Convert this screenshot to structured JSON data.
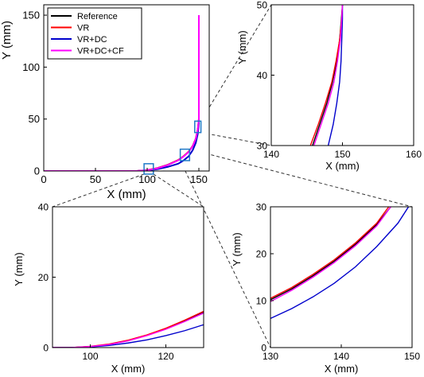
{
  "legend": {
    "entries": [
      {
        "label": "Reference",
        "color": "#000000"
      },
      {
        "label": "VR",
        "color": "#ff0000"
      },
      {
        "label": "VR+DC",
        "color": "#0000cc"
      },
      {
        "label": "VR+DC+CF",
        "color": "#ff00ff"
      }
    ]
  },
  "colors": {
    "box": "#1f78c8",
    "connector": "#333333"
  },
  "chart_data": [
    {
      "id": "main",
      "type": "line",
      "xlabel": "X (mm)",
      "ylabel": "Y (mm)",
      "xlim": [
        0,
        160
      ],
      "ylim": [
        0,
        160
      ],
      "xticks": [
        0,
        50,
        100,
        150
      ],
      "yticks": [
        0,
        50,
        100,
        150
      ],
      "series": [
        {
          "name": "Reference",
          "color": "#000000",
          "points": [
            [
              0,
              0
            ],
            [
              90,
              0
            ],
            [
              100,
              0.8
            ],
            [
              110,
              2.8
            ],
            [
              120,
              6
            ],
            [
              130,
              10.5
            ],
            [
              135,
              14
            ],
            [
              140,
              18.5
            ],
            [
              144,
              24
            ],
            [
              147,
              31
            ],
            [
              149,
              40
            ],
            [
              150,
              50
            ],
            [
              150,
              100
            ],
            [
              150,
              150
            ]
          ]
        },
        {
          "name": "VR",
          "color": "#ff0000",
          "points": [
            [
              0,
              0
            ],
            [
              90,
              0
            ],
            [
              100,
              0.8
            ],
            [
              110,
              2.8
            ],
            [
              120,
              6
            ],
            [
              130,
              10.5
            ],
            [
              135,
              14
            ],
            [
              140,
              18.5
            ],
            [
              144,
              24
            ],
            [
              147,
              31
            ],
            [
              149,
              40
            ],
            [
              150,
              50
            ],
            [
              150,
              100
            ],
            [
              150,
              150
            ]
          ]
        },
        {
          "name": "VR+DC",
          "color": "#0000cc",
          "points": [
            [
              0,
              0
            ],
            [
              90,
              0
            ],
            [
              100,
              0.5
            ],
            [
              110,
              1.8
            ],
            [
              120,
              4
            ],
            [
              130,
              7
            ],
            [
              135,
              10
            ],
            [
              140,
              14
            ],
            [
              144,
              20
            ],
            [
              147,
              27
            ],
            [
              149,
              36
            ],
            [
              150,
              46
            ],
            [
              150,
              100
            ],
            [
              150,
              150
            ]
          ]
        },
        {
          "name": "VR+DC+CF",
          "color": "#ff00ff",
          "points": [
            [
              0,
              0
            ],
            [
              90,
              0
            ],
            [
              100,
              0.7
            ],
            [
              110,
              2.6
            ],
            [
              120,
              5.8
            ],
            [
              130,
              10.2
            ],
            [
              135,
              13.8
            ],
            [
              140,
              18.2
            ],
            [
              144,
              23.8
            ],
            [
              147,
              31
            ],
            [
              149,
              40
            ],
            [
              150,
              50
            ],
            [
              150,
              100
            ],
            [
              150,
              150
            ]
          ]
        }
      ],
      "zoom_boxes": [
        {
          "xlim": [
            146,
            152
          ],
          "ylim": [
            37,
            48
          ]
        },
        {
          "xlim": [
            97,
            106
          ],
          "ylim": [
            -3,
            7
          ]
        },
        {
          "xlim": [
            132,
            141
          ],
          "ylim": [
            10,
            21
          ]
        }
      ]
    },
    {
      "id": "zoom-top-right",
      "type": "line",
      "xlabel": "X (mm)",
      "ylabel": "Y (mm)",
      "xlim": [
        140,
        160
      ],
      "ylim": [
        30,
        50
      ],
      "xticks": [
        140,
        150,
        160
      ],
      "yticks": [
        30,
        40,
        50
      ],
      "series": [
        {
          "name": "Reference",
          "color": "#000000",
          "points": [
            [
              145.8,
              30
            ],
            [
              146.8,
              33
            ],
            [
              147.8,
              36
            ],
            [
              148.6,
              39
            ],
            [
              149.2,
              42
            ],
            [
              149.6,
              45
            ],
            [
              149.85,
              48
            ],
            [
              150,
              50
            ]
          ]
        },
        {
          "name": "VR",
          "color": "#ff0000",
          "points": [
            [
              145.5,
              30
            ],
            [
              146.6,
              33
            ],
            [
              147.6,
              36
            ],
            [
              148.5,
              39
            ],
            [
              149.1,
              42
            ],
            [
              149.6,
              45
            ],
            [
              149.9,
              48
            ],
            [
              150,
              50
            ]
          ]
        },
        {
          "name": "VR+DC",
          "color": "#0000cc",
          "points": [
            [
              148,
              30
            ],
            [
              148.7,
              33
            ],
            [
              149.2,
              36
            ],
            [
              149.6,
              39
            ],
            [
              149.8,
              42
            ],
            [
              149.9,
              45
            ],
            [
              150,
              48
            ],
            [
              150,
              50
            ]
          ]
        },
        {
          "name": "VR+DC+CF",
          "color": "#ff00ff",
          "points": [
            [
              146,
              30
            ],
            [
              147,
              33
            ],
            [
              148,
              36
            ],
            [
              148.8,
              39
            ],
            [
              149.3,
              42
            ],
            [
              149.7,
              45
            ],
            [
              149.9,
              48
            ],
            [
              150,
              50
            ]
          ]
        }
      ]
    },
    {
      "id": "zoom-bottom-left",
      "type": "line",
      "xlabel": "X (mm)",
      "ylabel": "Y (mm)",
      "xlim": [
        90,
        130
      ],
      "ylim": [
        0,
        40
      ],
      "xticks": [
        100,
        120
      ],
      "yticks": [
        0,
        20,
        40
      ],
      "series": [
        {
          "name": "Reference",
          "color": "#000000",
          "points": [
            [
              90,
              0
            ],
            [
              95,
              0
            ],
            [
              100,
              0.3
            ],
            [
              105,
              0.9
            ],
            [
              110,
              2
            ],
            [
              115,
              3.5
            ],
            [
              120,
              5.3
            ],
            [
              125,
              7.6
            ],
            [
              130,
              10
            ]
          ]
        },
        {
          "name": "VR",
          "color": "#ff0000",
          "points": [
            [
              90,
              0
            ],
            [
              95,
              0
            ],
            [
              100,
              0.35
            ],
            [
              105,
              1
            ],
            [
              110,
              2.1
            ],
            [
              115,
              3.6
            ],
            [
              120,
              5.5
            ],
            [
              125,
              7.8
            ],
            [
              130,
              10.3
            ]
          ]
        },
        {
          "name": "VR+DC",
          "color": "#0000cc",
          "points": [
            [
              90,
              0
            ],
            [
              95,
              0
            ],
            [
              100,
              0.2
            ],
            [
              105,
              0.6
            ],
            [
              110,
              1.3
            ],
            [
              115,
              2.2
            ],
            [
              120,
              3.4
            ],
            [
              125,
              4.8
            ],
            [
              130,
              6.5
            ]
          ]
        },
        {
          "name": "VR+DC+CF",
          "color": "#ff00ff",
          "points": [
            [
              90,
              0
            ],
            [
              95,
              0
            ],
            [
              100,
              0.3
            ],
            [
              105,
              0.85
            ],
            [
              110,
              1.9
            ],
            [
              115,
              3.4
            ],
            [
              120,
              5.2
            ],
            [
              125,
              7.4
            ],
            [
              130,
              9.8
            ]
          ]
        }
      ]
    },
    {
      "id": "zoom-bottom-right",
      "type": "line",
      "xlabel": "X (mm)",
      "ylabel": "Y (mm)",
      "xlim": [
        130,
        150
      ],
      "ylim": [
        0,
        30
      ],
      "xticks": [
        130,
        140,
        150
      ],
      "yticks": [
        0,
        10,
        20,
        30
      ],
      "series": [
        {
          "name": "Reference",
          "color": "#000000",
          "points": [
            [
              130,
              10.2
            ],
            [
              133,
              12.5
            ],
            [
              136,
              15.3
            ],
            [
              139,
              18.4
            ],
            [
              142,
              22
            ],
            [
              145,
              26.2
            ],
            [
              147,
              30
            ]
          ]
        },
        {
          "name": "VR",
          "color": "#ff0000",
          "points": [
            [
              130,
              10.5
            ],
            [
              133,
              12.8
            ],
            [
              136,
              15.6
            ],
            [
              139,
              18.7
            ],
            [
              142,
              22.3
            ],
            [
              145,
              26.5
            ],
            [
              146.7,
              30
            ]
          ]
        },
        {
          "name": "VR+DC",
          "color": "#0000cc",
          "points": [
            [
              130,
              6.2
            ],
            [
              133,
              8.3
            ],
            [
              136,
              10.8
            ],
            [
              139,
              13.7
            ],
            [
              142,
              17.2
            ],
            [
              145,
              21.5
            ],
            [
              148,
              26.5
            ],
            [
              149.5,
              30
            ]
          ]
        },
        {
          "name": "VR+DC+CF",
          "color": "#ff00ff",
          "points": [
            [
              130,
              9.8
            ],
            [
              133,
              12.2
            ],
            [
              136,
              15
            ],
            [
              139,
              18.1
            ],
            [
              142,
              21.7
            ],
            [
              145,
              25.9
            ],
            [
              147,
              30
            ]
          ]
        }
      ]
    }
  ]
}
